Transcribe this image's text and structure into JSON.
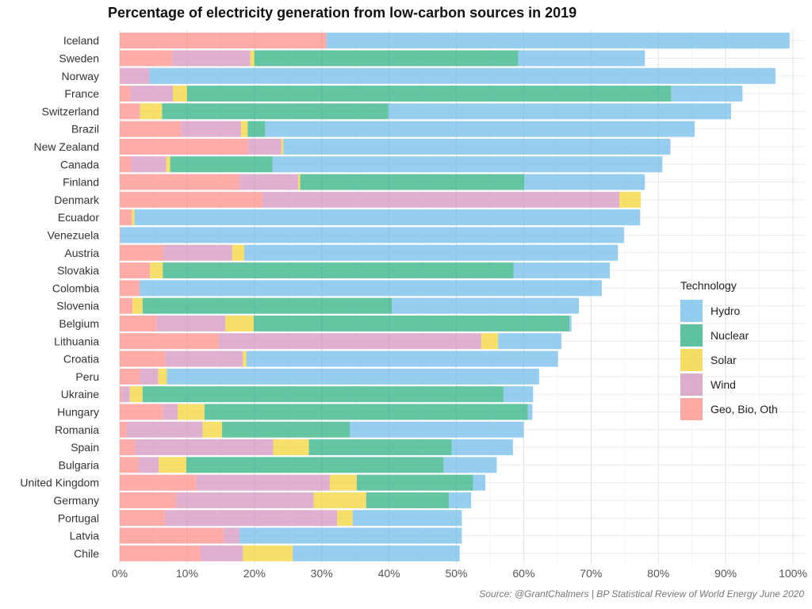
{
  "chart_data": {
    "type": "bar",
    "orientation": "horizontal",
    "stacked": true,
    "title": "Percentage of electricity generation from low-carbon sources in 2019",
    "xlabel": "",
    "ylabel": "",
    "xlim": [
      0,
      100
    ],
    "x_ticks": [
      "0%",
      "10%",
      "20%",
      "30%",
      "40%",
      "50%",
      "60%",
      "70%",
      "80%",
      "90%",
      "100%"
    ],
    "grid": true,
    "legend_position": "right",
    "legend_title": "Technology",
    "legend_order": [
      "Hydro",
      "Nuclear",
      "Solar",
      "Wind",
      "Geo, Bio, Oth"
    ],
    "stack_order": [
      "Geo, Bio, Oth",
      "Wind",
      "Solar",
      "Nuclear",
      "Hydro"
    ],
    "colors": {
      "Hydro": "#6fbbea",
      "Nuclear": "#28ae80",
      "Solar": "#f2d230",
      "Wind": "#d291bc",
      "Geo, Bio, Oth": "#ff8c86"
    },
    "categories": [
      "Iceland",
      "Sweden",
      "Norway",
      "France",
      "Switzerland",
      "Brazil",
      "New Zealand",
      "Canada",
      "Finland",
      "Denmark",
      "Ecuador",
      "Venezuela",
      "Austria",
      "Slovakia",
      "Colombia",
      "Slovenia",
      "Belgium",
      "Lithuania",
      "Croatia",
      "Peru",
      "Ukraine",
      "Hungary",
      "Romania",
      "Spain",
      "Bulgaria",
      "United Kingdom",
      "Germany",
      "Portugal",
      "Latvia",
      "Chile"
    ],
    "series": [
      {
        "name": "Geo, Bio, Oth",
        "values": [
          30.7,
          7.8,
          0.1,
          1.6,
          2.9,
          9.1,
          19.0,
          1.7,
          17.8,
          21.2,
          1.8,
          0.1,
          6.5,
          4.5,
          2.9,
          1.9,
          5.5,
          14.7,
          6.8,
          3.0,
          0.3,
          6.4,
          1.0,
          2.3,
          2.8,
          11.4,
          8.4,
          6.7,
          15.4,
          12.0
        ]
      },
      {
        "name": "Wind",
        "values": [
          0.0,
          11.6,
          4.3,
          6.3,
          0.1,
          8.9,
          5.0,
          5.2,
          8.7,
          53.0,
          0.0,
          0.0,
          10.2,
          0.0,
          0.1,
          0.0,
          10.2,
          39.0,
          11.5,
          2.7,
          1.2,
          2.2,
          11.3,
          20.5,
          3.0,
          19.8,
          20.4,
          25.6,
          2.4,
          6.3
        ]
      },
      {
        "name": "Solar",
        "values": [
          0.0,
          0.6,
          0.0,
          2.1,
          3.3,
          1.0,
          0.3,
          0.6,
          0.3,
          3.2,
          0.4,
          0.0,
          1.8,
          1.9,
          0.0,
          1.5,
          4.2,
          2.5,
          0.5,
          1.3,
          1.9,
          4.0,
          2.9,
          5.3,
          4.1,
          4.0,
          7.8,
          2.3,
          0.0,
          7.4
        ]
      },
      {
        "name": "Nuclear",
        "values": [
          0.0,
          39.2,
          0.0,
          71.9,
          33.6,
          2.6,
          0.0,
          15.2,
          33.3,
          0.0,
          0.0,
          0.0,
          0.0,
          52.1,
          0.0,
          37.0,
          46.9,
          0.0,
          0.0,
          0.0,
          53.6,
          48.0,
          19.0,
          21.2,
          38.2,
          17.3,
          12.3,
          0.0,
          0.0,
          0.0
        ]
      },
      {
        "name": "Hydro",
        "values": [
          68.8,
          18.8,
          93.0,
          10.6,
          50.9,
          63.8,
          57.5,
          57.9,
          17.9,
          0.0,
          75.1,
          74.8,
          55.5,
          14.3,
          68.6,
          27.8,
          0.3,
          9.4,
          46.3,
          55.3,
          4.4,
          0.7,
          25.8,
          9.1,
          7.9,
          1.8,
          3.3,
          16.2,
          33.0,
          24.8
        ]
      }
    ]
  },
  "source_note": "Source: @GrantChalmers | BP Statistical Review of World Energy June 2020"
}
